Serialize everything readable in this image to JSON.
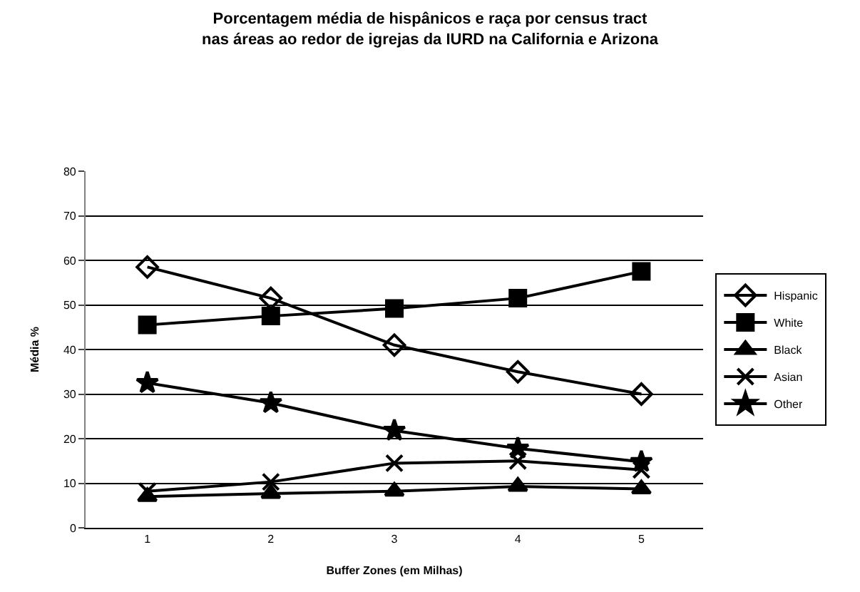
{
  "chart_data": {
    "type": "line",
    "title": "Porcentagem média de hispânicos e raça por census tract\nnas áreas ao redor de igrejas da IURD na California e Arizona",
    "xlabel": "Buffer Zones (em Milhas)",
    "ylabel": "Média %",
    "categories": [
      "1",
      "2",
      "3",
      "4",
      "5"
    ],
    "series": [
      {
        "name": "Hispanic",
        "color": "#000000",
        "marker": "diamond",
        "values": [
          58.5,
          51.5,
          41,
          35,
          30
        ]
      },
      {
        "name": "White",
        "color": "#000000",
        "marker": "square",
        "values": [
          45.5,
          47.5,
          49.2,
          51.5,
          57.5
        ]
      },
      {
        "name": "Black",
        "color": "#000000",
        "marker": "triangle",
        "values": [
          7,
          7.7,
          8.2,
          9.3,
          8.7
        ]
      },
      {
        "name": "Asian",
        "color": "#000000",
        "marker": "cross",
        "values": [
          8.2,
          10.3,
          14.5,
          15,
          13
        ]
      },
      {
        "name": "Other",
        "color": "#000000",
        "marker": "star",
        "values": [
          32.5,
          28,
          21.8,
          17.8,
          14.8
        ]
      }
    ],
    "ylim": [
      0,
      80
    ],
    "yticks": [
      0,
      10,
      20,
      30,
      40,
      50,
      60,
      70,
      80
    ],
    "grid": "y",
    "legend": "right"
  }
}
